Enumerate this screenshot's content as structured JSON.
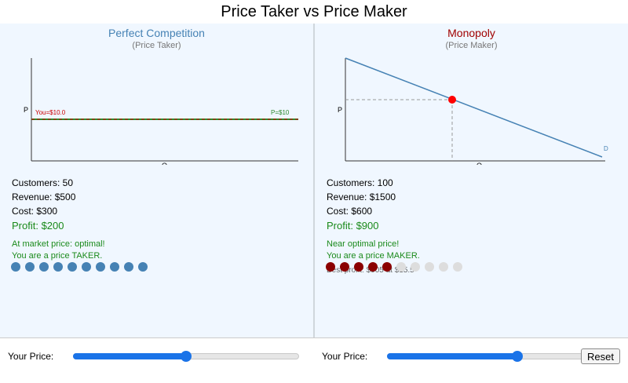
{
  "page_title": "Price Taker vs Price Maker",
  "left": {
    "title": "Perfect Competition",
    "subtitle": "(Price Taker)",
    "title_color": "#4682b4",
    "chart": {
      "y_label": "P",
      "x_label": "Q",
      "you_label": "You=$10.0",
      "market_label": "P=$10"
    },
    "stats": {
      "customers": "Customers: 50",
      "revenue": "Revenue: $500",
      "cost": "Cost: $300"
    },
    "profit": "Profit: $200",
    "message_line1": "At market price: optimal!",
    "message_line2": "You are a price TAKER.",
    "dots": {
      "filled": 10,
      "total": 10,
      "filled_color": "#4682b4",
      "empty_color": "#dddddd"
    }
  },
  "right": {
    "title": "Monopoly",
    "subtitle": "(Price Maker)",
    "title_color": "#a00000",
    "chart": {
      "y_label": "P",
      "x_label": "Q",
      "demand_label": "D"
    },
    "stats": {
      "customers": "Customers: 100",
      "revenue": "Revenue: $1500",
      "cost": "Cost: $600"
    },
    "profit": "Profit: $900",
    "message_line1": "Near optimal price!",
    "message_line2": "You are a price MAKER.",
    "hint": "Best profit: $905 at $15.5",
    "dots": {
      "filled": 5,
      "total": 10,
      "filled_color": "#8b0000",
      "empty_color": "#dddddd"
    }
  },
  "controls": {
    "left_label": "Your Price:",
    "right_label": "Your Price:",
    "left_slider_value": 0.5,
    "right_slider_value": 0.575,
    "reset_label": "Reset"
  },
  "colors": {
    "market_line": "#2e8b2e",
    "price_line": "#cc0000",
    "demand_line": "#4682b4",
    "point": "#ff0000"
  }
}
